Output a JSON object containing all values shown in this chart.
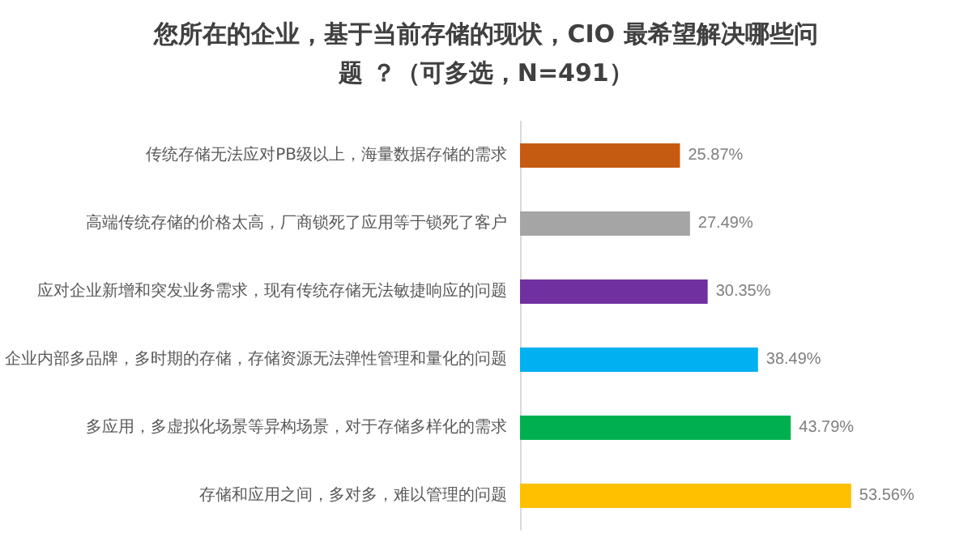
{
  "chart_data": {
    "type": "bar",
    "orientation": "horizontal",
    "title": "您所在的企业，基于当前存储的现状，CIO 最希望解决哪些问题 ？（可多选，N=491）",
    "categories": [
      "传统存储无法应对PB级以上，海量数据存储的需求",
      "高端传统存储的价格太高，厂商锁死了应用等于锁死了客户",
      "应对企业新增和突发业务需求，现有传统存储无法敏捷响应的问题",
      "企业内部多品牌，多时期的存储，存储资源无法弹性管理和量化的问题",
      "多应用，多虚拟化场景等异构场景，对于存储多样化的需求",
      "存储和应用之间，多对多，难以管理的问题"
    ],
    "values": [
      25.87,
      27.49,
      30.35,
      38.49,
      43.79,
      53.56
    ],
    "colors": [
      "#c55a11",
      "#a5a5a5",
      "#7030a0",
      "#00b0f0",
      "#00b050",
      "#ffc000"
    ],
    "value_labels": [
      "25.87%",
      "27.49%",
      "30.35%",
      "38.49%",
      "43.79%",
      "53.56%"
    ],
    "grid": false
  }
}
